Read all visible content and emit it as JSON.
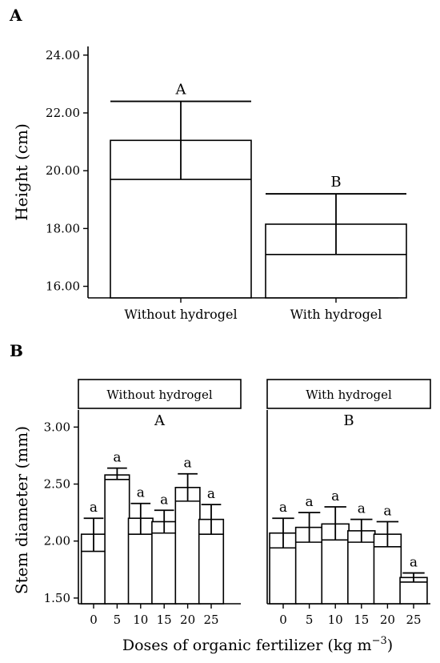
{
  "chart_data": [
    {
      "panel_label": "A",
      "type": "bar",
      "ylabel": "Height (cm)",
      "xlabel": "",
      "ylim": [
        15.6,
        24.3
      ],
      "yticks": [
        "16.00",
        "18.00",
        "20.00",
        "22.00",
        "24.00"
      ],
      "categories": [
        "Without hydrogel",
        "With hydrogel"
      ],
      "values": [
        21.05,
        18.15
      ],
      "lines": [
        19.7,
        17.1
      ],
      "err_low": [
        19.7,
        17.1
      ],
      "err_high": [
        22.4,
        19.2
      ],
      "letters": [
        "A",
        "B"
      ],
      "grid": false
    },
    {
      "panel_label": "B",
      "type": "bar",
      "ylabel": "Stem diameter (mm)",
      "xlabel": "Doses of organic fertilizer (kg m",
      "xlabel_sup": "−3",
      "xlabel_end": ")",
      "ylim": [
        1.45,
        3.15
      ],
      "yticks": [
        "1.50",
        "2.00",
        "2.50",
        "3.00"
      ],
      "categories": [
        "0",
        "5",
        "10",
        "15",
        "20",
        "25"
      ],
      "facets": [
        {
          "strip": "Without hydrogel",
          "group_letter": "A",
          "values": [
            2.06,
            2.58,
            2.2,
            2.17,
            2.47,
            2.19
          ],
          "lines": [
            1.91,
            2.54,
            2.06,
            2.07,
            2.35,
            2.06
          ],
          "err_low": [
            1.91,
            2.54,
            2.06,
            2.07,
            2.35,
            2.06
          ],
          "err_high": [
            2.2,
            2.64,
            2.33,
            2.27,
            2.59,
            2.32
          ],
          "letters": [
            "a",
            "a",
            "a",
            "a",
            "a",
            "a"
          ]
        },
        {
          "strip": "With hydrogel",
          "group_letter": "B",
          "values": [
            2.07,
            2.12,
            2.15,
            2.09,
            2.06,
            1.68
          ],
          "lines": [
            1.94,
            1.99,
            2.01,
            1.99,
            1.95,
            1.64
          ],
          "err_low": [
            1.94,
            1.99,
            2.01,
            1.99,
            1.95,
            1.64
          ],
          "err_high": [
            2.2,
            2.25,
            2.3,
            2.19,
            2.17,
            1.72
          ],
          "letters": [
            "a",
            "a",
            "a",
            "a",
            "a",
            "a"
          ]
        }
      ],
      "grid": false
    }
  ]
}
